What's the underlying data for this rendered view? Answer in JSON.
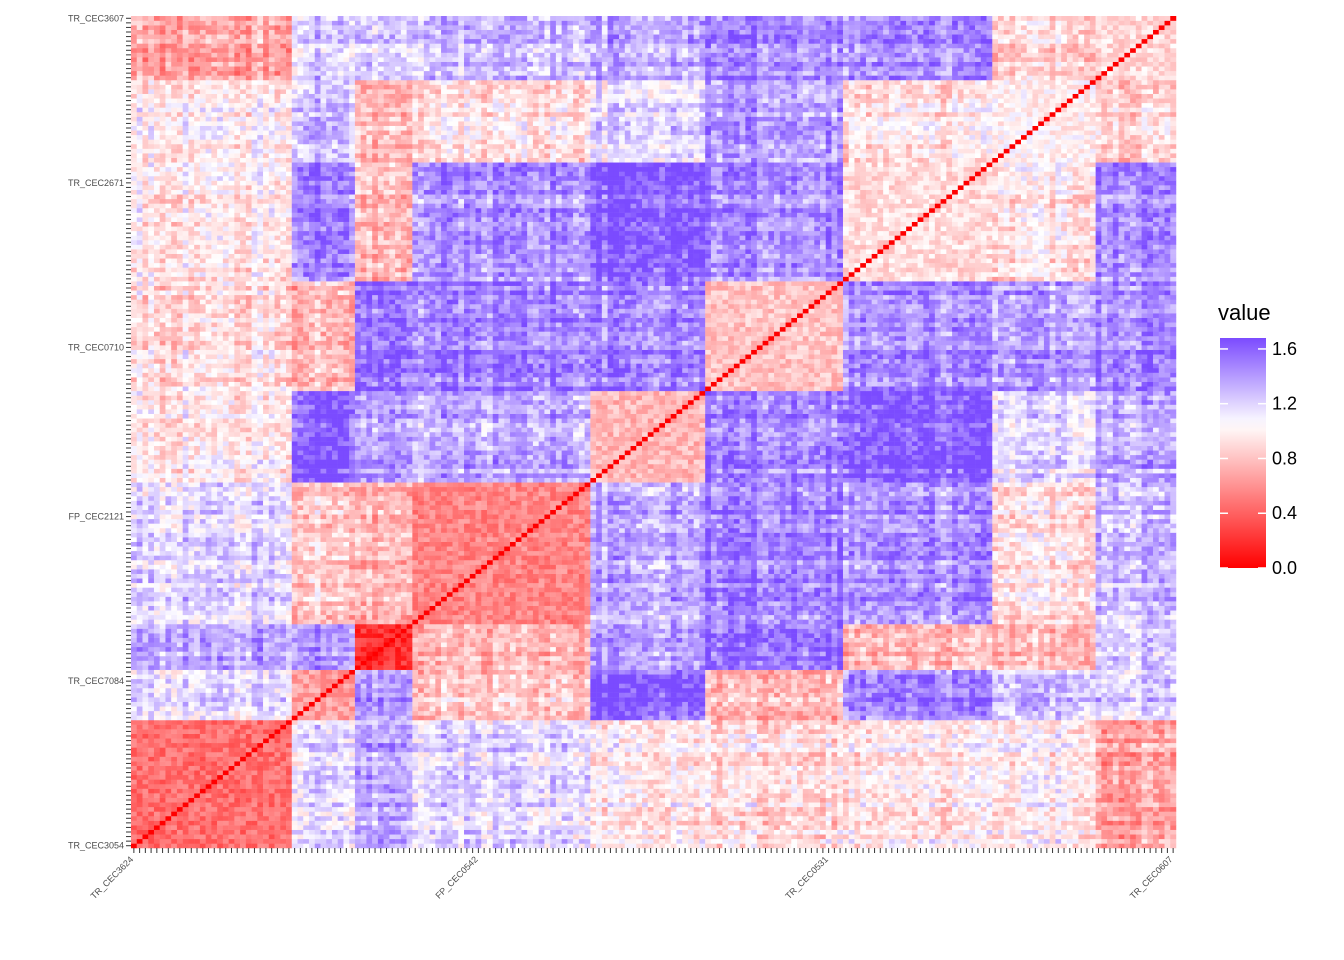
{
  "chart_data": {
    "type": "heatmap",
    "title": "",
    "xlabel": "",
    "ylabel": "",
    "n_rows": 182,
    "n_cols": 182,
    "diagonal_value": 0.0,
    "x_tick_labels_visible_sample": [
      "TR_CEC3624",
      "FP_CEC0542",
      "TR_CEC0531",
      "TR_CEC0607"
    ],
    "y_tick_labels_visible_sample": [
      "TR_CEC3607",
      "TR_CEC2671",
      "TR_CEC0710",
      "FP_CEC2121",
      "TR_CEC7084",
      "TR_CEC3054"
    ],
    "blocks": [
      {
        "name": "block-a",
        "start": 0,
        "end": 28,
        "within_value": 0.45
      },
      {
        "name": "block-b",
        "start": 28,
        "end": 39,
        "within_value": 0.65
      },
      {
        "name": "block-c",
        "start": 39,
        "end": 49,
        "within_value": 0.2
      },
      {
        "name": "block-d",
        "start": 49,
        "end": 80,
        "within_value": 0.55
      },
      {
        "name": "block-e",
        "start": 80,
        "end": 100,
        "within_value": 0.75
      },
      {
        "name": "block-f",
        "start": 100,
        "end": 124,
        "within_value": 0.8
      },
      {
        "name": "block-g",
        "start": 124,
        "end": 150,
        "within_value": 0.9
      },
      {
        "name": "block-h",
        "start": 150,
        "end": 168,
        "within_value": 1.0
      },
      {
        "name": "block-i",
        "start": 168,
        "end": 182,
        "within_value": 0.9
      }
    ],
    "between_block_value_range": [
      0.7,
      1.65
    ],
    "legend": {
      "title": "value",
      "position": "right",
      "ticks": [
        "1.6",
        "1.2",
        "0.8",
        "0.4",
        "0.0"
      ],
      "tick_values": [
        1.6,
        1.2,
        0.8,
        0.4,
        0.0
      ],
      "range": [
        0.0,
        1.68
      ]
    },
    "colors": {
      "low": "#ff0000",
      "mid": "#ffffff",
      "high": "#7b4bff",
      "midpoint": 1.05
    }
  }
}
